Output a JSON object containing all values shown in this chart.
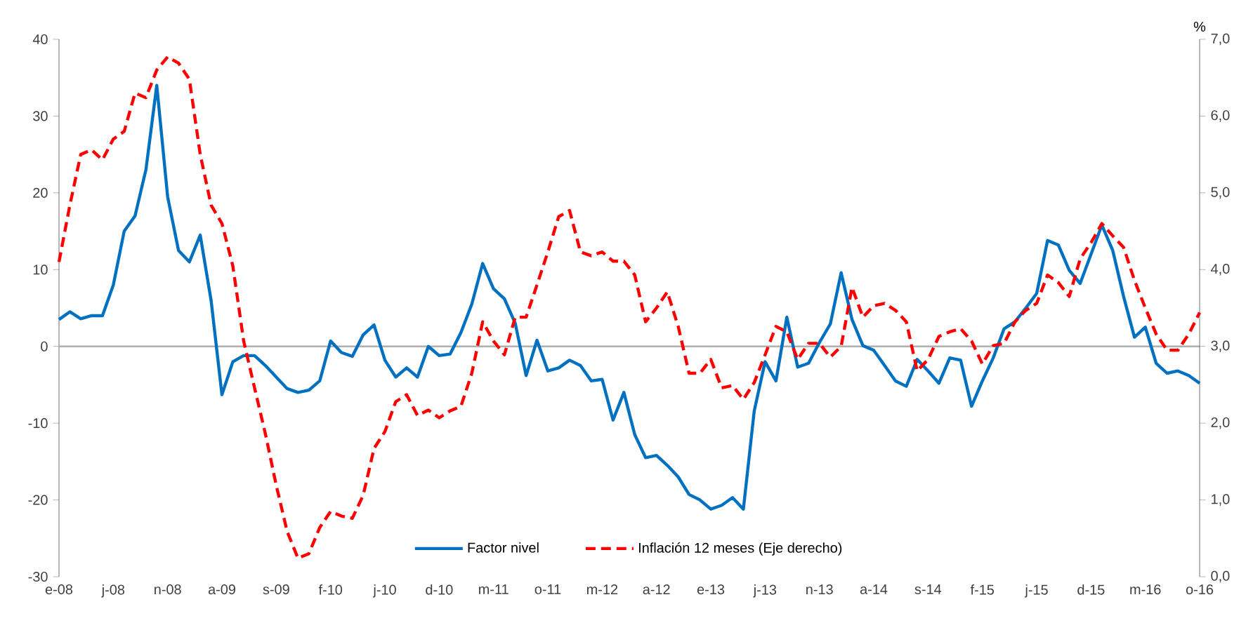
{
  "chart_data": {
    "type": "line",
    "categories": [
      "e-08",
      null,
      null,
      null,
      null,
      "j-08",
      null,
      null,
      null,
      null,
      "n-08",
      null,
      null,
      null,
      null,
      "a-09",
      null,
      null,
      null,
      null,
      "s-09",
      null,
      null,
      null,
      null,
      "f-10",
      null,
      null,
      null,
      null,
      "j-10",
      null,
      null,
      null,
      null,
      "d-10",
      null,
      null,
      null,
      null,
      "m-11",
      null,
      null,
      null,
      null,
      "o-11",
      null,
      null,
      null,
      null,
      "m-12",
      null,
      null,
      null,
      null,
      "a-12",
      null,
      null,
      null,
      null,
      "e-13",
      null,
      null,
      null,
      null,
      "j-13",
      null,
      null,
      null,
      null,
      "n-13",
      null,
      null,
      null,
      null,
      "a-14",
      null,
      null,
      null,
      null,
      "s-14",
      null,
      null,
      null,
      null,
      "f-15",
      null,
      null,
      null,
      null,
      "j-15",
      null,
      null,
      null,
      null,
      "d-15",
      null,
      null,
      null,
      null,
      "m-16",
      null,
      null,
      null,
      null,
      "o-16"
    ],
    "series": [
      {
        "name": "Factor nivel",
        "color": "#0070c0",
        "line_style": "solid",
        "values": [
          3.5,
          4.5,
          3.6,
          4.0,
          4.0,
          8.0,
          15.0,
          17.0,
          23.0,
          34.0,
          19.5,
          12.5,
          11.0,
          14.5,
          6.0,
          -6.3,
          -2.0,
          -1.2,
          -1.2,
          -2.5,
          -4.0,
          -5.5,
          -6.0,
          -5.7,
          -4.5,
          0.7,
          -0.8,
          -1.3,
          1.5,
          2.8,
          -1.8,
          -4.0,
          -2.8,
          -4.0,
          0.0,
          -1.2,
          -1.0,
          1.8,
          5.5,
          10.8,
          7.5,
          6.2,
          3.0,
          -3.8,
          0.8,
          -3.2,
          -2.8,
          -1.8,
          -2.5,
          -4.5,
          -4.3,
          -9.6,
          -6.0,
          -11.5,
          -14.5,
          -14.2,
          -15.5,
          -17.0,
          -19.3,
          -20.0,
          -21.2,
          -20.7,
          -19.7,
          -21.2,
          -8.4,
          -2.0,
          -4.5,
          3.8,
          -2.7,
          -2.2,
          0.5,
          2.9,
          9.6,
          3.5,
          0.1,
          -0.5,
          -2.5,
          -4.5,
          -5.2,
          -1.7,
          -3.2,
          -4.8,
          -1.5,
          -1.8,
          -7.8,
          -4.5,
          -1.5,
          2.3,
          3.2,
          5.0,
          6.9,
          13.8,
          13.2,
          9.9,
          8.2,
          12.0,
          15.8,
          12.5,
          6.5,
          1.2,
          2.5,
          -2.2,
          -3.5,
          -3.2,
          -3.8,
          -4.8
        ]
      },
      {
        "name": "Inflación 12 meses (Eje derecho)",
        "color": "#ff0000",
        "line_style": "dashed",
        "axis": "y2",
        "values": [
          4.1,
          4.84,
          5.5,
          5.56,
          5.43,
          5.7,
          5.8,
          6.3,
          6.24,
          6.6,
          6.77,
          6.69,
          6.48,
          5.5,
          4.84,
          4.6,
          4.05,
          3.07,
          2.46,
          1.86,
          1.19,
          0.59,
          0.24,
          0.3,
          0.64,
          0.85,
          0.79,
          0.76,
          1.06,
          1.67,
          1.89,
          2.28,
          2.37,
          2.1,
          2.17,
          2.07,
          2.16,
          2.22,
          2.65,
          3.32,
          3.07,
          2.89,
          3.38,
          3.38,
          3.8,
          4.23,
          4.69,
          4.77,
          4.23,
          4.18,
          4.23,
          4.11,
          4.11,
          3.93,
          3.32,
          3.5,
          3.71,
          3.26,
          2.65,
          2.65,
          2.83,
          2.46,
          2.49,
          2.31,
          2.53,
          2.89,
          3.26,
          3.19,
          2.83,
          3.04,
          3.04,
          2.86,
          3.0,
          3.77,
          3.38,
          3.53,
          3.56,
          3.47,
          3.32,
          2.68,
          2.83,
          3.13,
          3.19,
          3.23,
          3.07,
          2.77,
          3.01,
          3.04,
          3.32,
          3.47,
          3.56,
          3.93,
          3.83,
          3.65,
          4.14,
          4.35,
          4.6,
          4.44,
          4.29,
          3.86,
          3.5,
          3.16,
          2.95,
          2.95,
          3.16,
          3.44
        ]
      }
    ],
    "ylim": [
      -30,
      40
    ],
    "yticks": [
      -30,
      -20,
      -10,
      0,
      10,
      20,
      30,
      40
    ],
    "y2label": "%",
    "y2lim": [
      0,
      7
    ],
    "y2ticks": [
      {
        "value": 0,
        "label": "0,0"
      },
      {
        "value": 1,
        "label": "1,0"
      },
      {
        "value": 2,
        "label": "2,0"
      },
      {
        "value": 3,
        "label": "3,0"
      },
      {
        "value": 4,
        "label": "4,0"
      },
      {
        "value": 5,
        "label": "5,0"
      },
      {
        "value": 6,
        "label": "6,0"
      },
      {
        "value": 7,
        "label": "7,0"
      }
    ],
    "ref_lines": [
      {
        "axis": "y",
        "value": 0,
        "color": "#b0b0b0"
      }
    ],
    "legend": "bottom",
    "grid": false,
    "marker": "none"
  }
}
